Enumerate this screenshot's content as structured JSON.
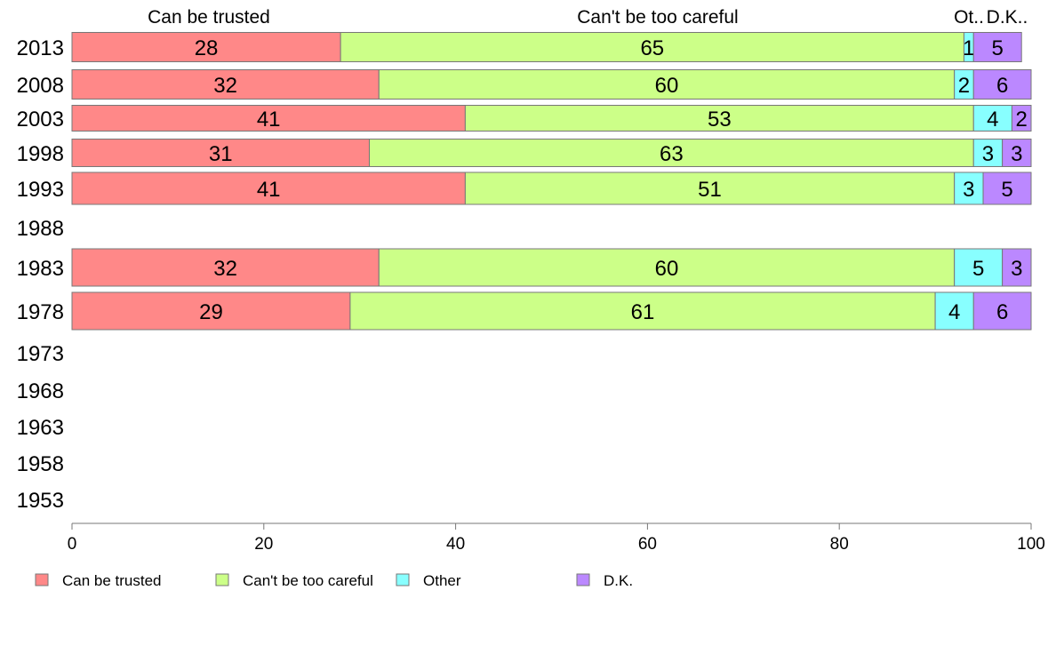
{
  "chart_data": {
    "type": "bar",
    "orientation": "horizontal",
    "stacked": true,
    "categories": [
      "2013",
      "2008",
      "2003",
      "1998",
      "1993",
      "1988",
      "1983",
      "1978",
      "1973",
      "1968",
      "1963",
      "1958",
      "1953"
    ],
    "series": [
      {
        "name": "Can be trusted",
        "color": "#ff8888",
        "values": [
          28,
          32,
          41,
          31,
          41,
          null,
          32,
          29,
          null,
          null,
          null,
          null,
          null
        ]
      },
      {
        "name": "Can't be too careful",
        "color": "#ccff88",
        "values": [
          65,
          60,
          53,
          63,
          51,
          null,
          60,
          61,
          null,
          null,
          null,
          null,
          null
        ]
      },
      {
        "name": "Other",
        "color": "#88ffff",
        "values": [
          1,
          2,
          4,
          3,
          3,
          null,
          5,
          4,
          null,
          null,
          null,
          null,
          null
        ]
      },
      {
        "name": "D.K.",
        "color": "#bb88ff",
        "values": [
          5,
          6,
          2,
          3,
          5,
          null,
          3,
          6,
          null,
          null,
          null,
          null,
          null
        ]
      }
    ],
    "column_headers": [
      "Can be trusted",
      "Can't be too careful",
      "Ot..",
      "D.K.."
    ],
    "xlim": [
      0,
      100
    ],
    "xticks": [
      0,
      20,
      40,
      60,
      80,
      100
    ],
    "grid": false,
    "legend_position": "bottom"
  }
}
